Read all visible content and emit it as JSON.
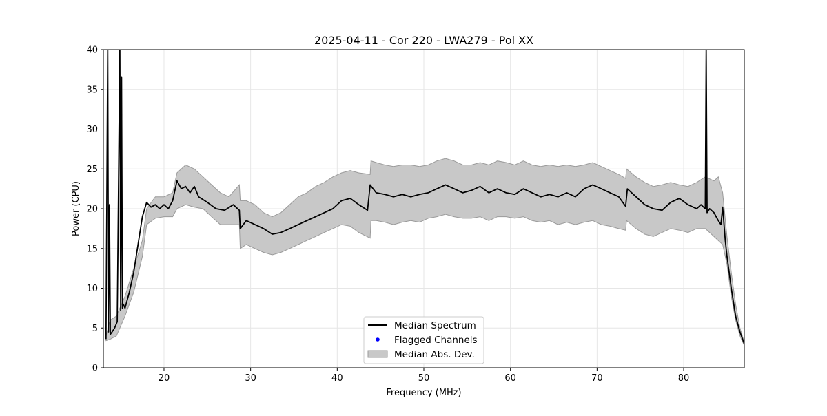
{
  "chart_data": {
    "type": "line",
    "title": "2025-04-11 - Cor 220 - LWA279 - Pol XX",
    "xlabel": "Frequency (MHz)",
    "ylabel": "Power (CPU)",
    "xlim": [
      13,
      87
    ],
    "ylim": [
      0,
      40
    ],
    "xticks": [
      20,
      30,
      40,
      50,
      60,
      70,
      80
    ],
    "yticks": [
      0,
      5,
      10,
      15,
      20,
      25,
      30,
      35,
      40
    ],
    "grid": true,
    "legend_position": "lower-center",
    "legend": [
      {
        "label": "Median Spectrum",
        "kind": "line"
      },
      {
        "label": "Flagged Channels",
        "kind": "marker"
      },
      {
        "label": "Median Abs. Dev.",
        "kind": "fill"
      }
    ],
    "colors": {
      "median": "#000000",
      "flagged": "#0000ff",
      "band_fill": "#c8c8c8",
      "band_edge": "#9a9a9a",
      "grid": "#e6e6e6"
    },
    "median_spectrum": {
      "x": [
        13.3,
        13.5,
        13.6,
        13.7,
        13.8,
        14.0,
        14.3,
        14.6,
        14.9,
        15.0,
        15.1,
        15.2,
        15.3,
        15.5,
        16.0,
        16.5,
        17.0,
        17.5,
        18.0,
        18.5,
        19.0,
        19.5,
        20.0,
        20.5,
        21.0,
        21.5,
        22.0,
        22.5,
        23.0,
        23.5,
        24.0,
        25.0,
        26.0,
        27.0,
        28.0,
        28.7,
        28.8,
        29.5,
        30.5,
        31.5,
        32.5,
        33.5,
        34.5,
        35.5,
        36.5,
        37.5,
        38.5,
        39.5,
        40.5,
        41.5,
        42.5,
        43.5,
        43.8,
        44.5,
        45.5,
        46.5,
        47.5,
        48.5,
        49.5,
        50.5,
        51.5,
        52.5,
        53.5,
        54.5,
        55.5,
        56.5,
        57.5,
        58.5,
        59.5,
        60.5,
        61.5,
        62.5,
        63.5,
        64.5,
        65.5,
        66.5,
        67.5,
        68.5,
        69.5,
        70.5,
        71.5,
        72.5,
        73.3,
        73.5,
        74.5,
        75.5,
        76.5,
        77.5,
        78.5,
        79.5,
        80.5,
        81.5,
        82.0,
        82.5,
        82.6,
        82.7,
        83.0,
        83.5,
        84.0,
        84.3,
        84.5,
        84.8,
        85.0,
        85.5,
        86.0,
        86.5,
        87.0
      ],
      "y": [
        3.6,
        40.0,
        4.5,
        20.5,
        4.2,
        4.5,
        5.0,
        5.8,
        40.0,
        7.2,
        36.5,
        7.5,
        8.0,
        7.5,
        9.5,
        12.0,
        15.5,
        19.0,
        20.8,
        20.2,
        20.5,
        20.0,
        20.5,
        20.0,
        21.0,
        23.5,
        22.5,
        22.8,
        22.0,
        22.8,
        21.5,
        20.8,
        20.0,
        19.8,
        20.5,
        19.8,
        17.5,
        18.5,
        18.0,
        17.5,
        16.8,
        17.0,
        17.5,
        18.0,
        18.5,
        19.0,
        19.5,
        20.0,
        21.0,
        21.3,
        20.5,
        19.8,
        23.0,
        22.0,
        21.8,
        21.5,
        21.8,
        21.5,
        21.8,
        22.0,
        22.5,
        23.0,
        22.5,
        22.0,
        22.3,
        22.8,
        22.0,
        22.5,
        22.0,
        21.8,
        22.5,
        22.0,
        21.5,
        21.8,
        21.5,
        22.0,
        21.5,
        22.5,
        23.0,
        22.5,
        22.0,
        21.5,
        20.3,
        22.5,
        21.5,
        20.5,
        20.0,
        19.8,
        20.8,
        21.3,
        20.5,
        20.0,
        20.5,
        20.0,
        40.0,
        19.5,
        20.0,
        19.5,
        18.5,
        18.0,
        20.2,
        16.0,
        14.0,
        10.0,
        6.5,
        4.5,
        3.0
      ]
    },
    "median_abs_dev": {
      "x": [
        13.3,
        13.8,
        14.5,
        15.5,
        16.5,
        17.5,
        18.0,
        19.0,
        20.0,
        21.0,
        21.5,
        22.5,
        23.5,
        24.5,
        25.5,
        26.5,
        27.5,
        28.7,
        28.8,
        29.5,
        30.5,
        31.5,
        32.5,
        33.5,
        34.5,
        35.5,
        36.5,
        37.5,
        38.5,
        39.5,
        40.5,
        41.5,
        42.5,
        43.8,
        43.9,
        44.5,
        45.5,
        46.5,
        47.5,
        48.5,
        49.5,
        50.5,
        51.5,
        52.5,
        53.5,
        54.5,
        55.5,
        56.5,
        57.5,
        58.5,
        59.5,
        60.5,
        61.5,
        62.5,
        63.5,
        64.5,
        65.5,
        66.5,
        67.5,
        68.5,
        69.5,
        70.5,
        71.5,
        72.5,
        73.3,
        73.4,
        74.5,
        75.5,
        76.5,
        77.5,
        78.5,
        79.5,
        80.5,
        81.5,
        82.5,
        83.5,
        84.0,
        84.5,
        85.0,
        85.5,
        86.0,
        86.5,
        87.0
      ],
      "upper": [
        4.0,
        6.0,
        6.5,
        9.0,
        12.5,
        16.0,
        20.0,
        21.5,
        21.5,
        22.0,
        24.5,
        25.5,
        25.0,
        24.0,
        23.0,
        22.0,
        21.5,
        23.0,
        21.0,
        21.0,
        20.5,
        19.5,
        19.0,
        19.5,
        20.5,
        21.5,
        22.0,
        22.8,
        23.3,
        24.0,
        24.5,
        24.8,
        24.5,
        24.3,
        26.0,
        25.8,
        25.5,
        25.3,
        25.5,
        25.5,
        25.3,
        25.5,
        26.0,
        26.3,
        26.0,
        25.5,
        25.5,
        25.8,
        25.5,
        26.0,
        25.8,
        25.5,
        26.0,
        25.5,
        25.3,
        25.5,
        25.3,
        25.5,
        25.3,
        25.5,
        25.8,
        25.3,
        24.8,
        24.3,
        23.8,
        25.0,
        24.0,
        23.3,
        22.8,
        23.0,
        23.3,
        23.0,
        22.8,
        23.3,
        24.0,
        23.5,
        24.0,
        22.0,
        16.5,
        12.0,
        8.0,
        5.0,
        3.2
      ],
      "lower": [
        3.4,
        3.6,
        4.0,
        6.5,
        9.5,
        14.0,
        18.0,
        18.8,
        19.0,
        19.0,
        20.0,
        20.5,
        20.2,
        20.0,
        19.0,
        18.0,
        18.0,
        18.0,
        15.0,
        15.5,
        15.0,
        14.5,
        14.2,
        14.5,
        15.0,
        15.5,
        16.0,
        16.5,
        17.0,
        17.5,
        18.0,
        17.8,
        17.0,
        16.3,
        18.5,
        18.5,
        18.3,
        18.0,
        18.3,
        18.5,
        18.3,
        18.8,
        19.0,
        19.3,
        19.0,
        18.8,
        18.8,
        19.0,
        18.5,
        19.0,
        19.0,
        18.8,
        19.0,
        18.5,
        18.3,
        18.5,
        18.0,
        18.3,
        18.0,
        18.3,
        18.5,
        18.0,
        17.8,
        17.5,
        17.3,
        18.5,
        17.5,
        16.8,
        16.5,
        17.0,
        17.5,
        17.3,
        17.0,
        17.5,
        17.5,
        16.5,
        16.0,
        15.5,
        13.0,
        9.0,
        6.0,
        4.0,
        2.8
      ]
    },
    "flagged_channels": []
  }
}
